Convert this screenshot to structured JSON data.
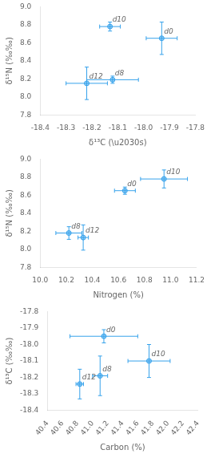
{
  "chart_data": [
    {
      "type": "scatter",
      "x_label": "δ¹³C (\\u2030s)",
      "y_label": "δ¹⁵N (‰‰)",
      "xlim": [
        -18.4,
        -17.8
      ],
      "ylim": [
        7.8,
        9.0
      ],
      "xticks": [
        -18.4,
        -18.3,
        -18.2,
        -18.1,
        {
          "value": -18.0,
          "label": "-18.0"
        },
        -17.9,
        -17.8
      ],
      "yticks": [
        7.8,
        {
          "value": 8.0,
          "label": "8.0"
        },
        8.2,
        8.4,
        8.6,
        8.8,
        {
          "value": 9.0,
          "label": "9.0"
        }
      ],
      "grid": false,
      "point_labels": [
        "d10",
        "d0",
        "d8",
        "d12"
      ],
      "x": [
        -18.13,
        -17.93,
        -18.12,
        -18.22
      ],
      "values": [
        8.78,
        8.65,
        8.19,
        8.15
      ],
      "xerr": [
        0.04,
        0.06,
        0.1,
        0.08
      ],
      "yerr": [
        0.05,
        0.18,
        0.04,
        0.18
      ]
    },
    {
      "type": "scatter",
      "x_label": "Nitrogen (%)",
      "y_label": "δ¹⁵N (‰‰)",
      "xlim": [
        10.0,
        11.2
      ],
      "ylim": [
        7.8,
        9.0
      ],
      "xticks": [
        {
          "value": 10.0,
          "label": "10.0"
        },
        10.2,
        10.4,
        10.6,
        10.8,
        {
          "value": 11.0,
          "label": "11.0"
        },
        11.2
      ],
      "yticks": [
        7.8,
        {
          "value": 8.0,
          "label": "8.0"
        },
        8.2,
        8.4,
        8.6,
        8.8,
        {
          "value": 9.0,
          "label": "9.0"
        }
      ],
      "grid": false,
      "point_labels": [
        "d10",
        "d0",
        "d8",
        "d12"
      ],
      "x": [
        10.95,
        10.65,
        10.22,
        10.33
      ],
      "values": [
        8.78,
        8.65,
        8.18,
        8.13
      ],
      "xerr": [
        0.18,
        0.08,
        0.1,
        0.04
      ],
      "yerr": [
        0.1,
        0.04,
        0.07,
        0.14
      ]
    },
    {
      "type": "scatter",
      "x_label": "Carbon (%)",
      "y_label": "δ¹³C (‰‰)",
      "xlim": [
        40.4,
        42.4
      ],
      "ylim": [
        -18.4,
        -17.8
      ],
      "xticks": [
        40.4,
        40.6,
        40.8,
        {
          "value": 41.0,
          "label": "41.0"
        },
        41.2,
        41.4,
        41.6,
        41.8,
        {
          "value": 42.0,
          "label": "42.0"
        },
        42.2,
        42.4
      ],
      "yticks": [
        -18.4,
        -18.3,
        -18.2,
        -18.1,
        {
          "value": -18.0,
          "label": "-18.0"
        },
        -17.9,
        -17.8
      ],
      "grid": false,
      "point_labels": [
        "d0",
        "d10",
        "d8",
        "d12"
      ],
      "x": [
        41.15,
        41.75,
        41.1,
        40.83
      ],
      "values": [
        -17.95,
        -18.1,
        -18.19,
        -18.24
      ],
      "xerr": [
        0.45,
        0.28,
        0.1,
        0.05
      ],
      "yerr": [
        0.04,
        0.1,
        0.12,
        0.09
      ]
    }
  ]
}
